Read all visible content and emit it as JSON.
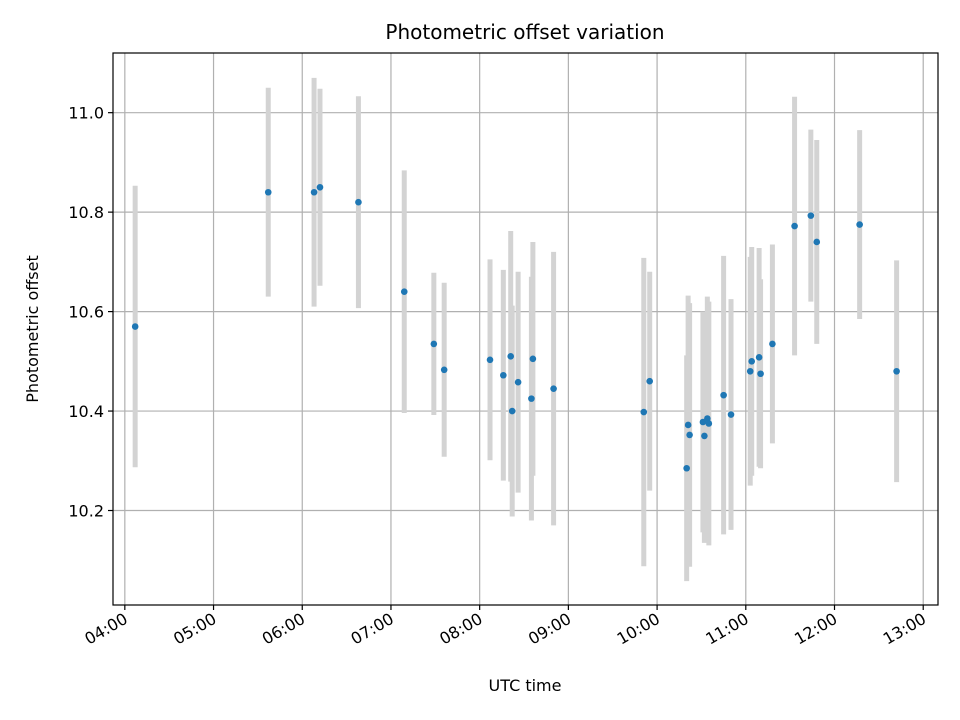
{
  "chart_data": {
    "type": "scatter",
    "title": "Photometric offset variation",
    "xlabel": "UTC time",
    "ylabel": "Photometric offset",
    "x_ticks": [
      "04:00",
      "05:00",
      "06:00",
      "07:00",
      "08:00",
      "09:00",
      "10:00",
      "11:00",
      "12:00",
      "13:00"
    ],
    "y_ticks": [
      "10.2",
      "10.4",
      "10.6",
      "10.8",
      "11.0"
    ],
    "xlim": [
      "03:52",
      "13:10"
    ],
    "ylim": [
      10.01,
      11.12
    ],
    "grid": true,
    "marker_color": "#1f77b4",
    "errorbar_color": "#d3d3d3",
    "points": [
      {
        "t": "04:07",
        "y": 10.57,
        "err": 0.283
      },
      {
        "t": "05:37",
        "y": 10.84,
        "err": 0.21
      },
      {
        "t": "06:08",
        "y": 10.84,
        "err": 0.23
      },
      {
        "t": "06:12",
        "y": 10.85,
        "err": 0.198
      },
      {
        "t": "06:38",
        "y": 10.82,
        "err": 0.213
      },
      {
        "t": "07:09",
        "y": 10.64,
        "err": 0.244
      },
      {
        "t": "07:29",
        "y": 10.535,
        "err": 0.143
      },
      {
        "t": "07:36",
        "y": 10.483,
        "err": 0.175
      },
      {
        "t": "08:07",
        "y": 10.503,
        "err": 0.202
      },
      {
        "t": "08:16",
        "y": 10.472,
        "err": 0.212
      },
      {
        "t": "08:21",
        "y": 10.51,
        "err": 0.252
      },
      {
        "t": "08:22",
        "y": 10.4,
        "err": 0.212
      },
      {
        "t": "08:26",
        "y": 10.458,
        "err": 0.222
      },
      {
        "t": "08:35",
        "y": 10.425,
        "err": 0.245
      },
      {
        "t": "08:36",
        "y": 10.505,
        "err": 0.235
      },
      {
        "t": "08:50",
        "y": 10.445,
        "err": 0.275
      },
      {
        "t": "09:51",
        "y": 10.398,
        "err": 0.31
      },
      {
        "t": "09:55",
        "y": 10.46,
        "err": 0.22
      },
      {
        "t": "10:20",
        "y": 10.285,
        "err": 0.227
      },
      {
        "t": "10:21",
        "y": 10.372,
        "err": 0.26
      },
      {
        "t": "10:22",
        "y": 10.352,
        "err": 0.265
      },
      {
        "t": "10:31",
        "y": 10.378,
        "err": 0.222
      },
      {
        "t": "10:32",
        "y": 10.35,
        "err": 0.215
      },
      {
        "t": "10:34",
        "y": 10.385,
        "err": 0.245
      },
      {
        "t": "10:35",
        "y": 10.375,
        "err": 0.245
      },
      {
        "t": "10:45",
        "y": 10.432,
        "err": 0.28
      },
      {
        "t": "10:50",
        "y": 10.393,
        "err": 0.232
      },
      {
        "t": "11:03",
        "y": 10.48,
        "err": 0.23
      },
      {
        "t": "11:04",
        "y": 10.5,
        "err": 0.23
      },
      {
        "t": "11:09",
        "y": 10.508,
        "err": 0.22
      },
      {
        "t": "11:10",
        "y": 10.475,
        "err": 0.19
      },
      {
        "t": "11:18",
        "y": 10.535,
        "err": 0.2
      },
      {
        "t": "11:33",
        "y": 10.772,
        "err": 0.26
      },
      {
        "t": "11:44",
        "y": 10.793,
        "err": 0.173
      },
      {
        "t": "11:48",
        "y": 10.74,
        "err": 0.205
      },
      {
        "t": "12:17",
        "y": 10.775,
        "err": 0.19
      },
      {
        "t": "12:42",
        "y": 10.48,
        "err": 0.223
      }
    ]
  }
}
